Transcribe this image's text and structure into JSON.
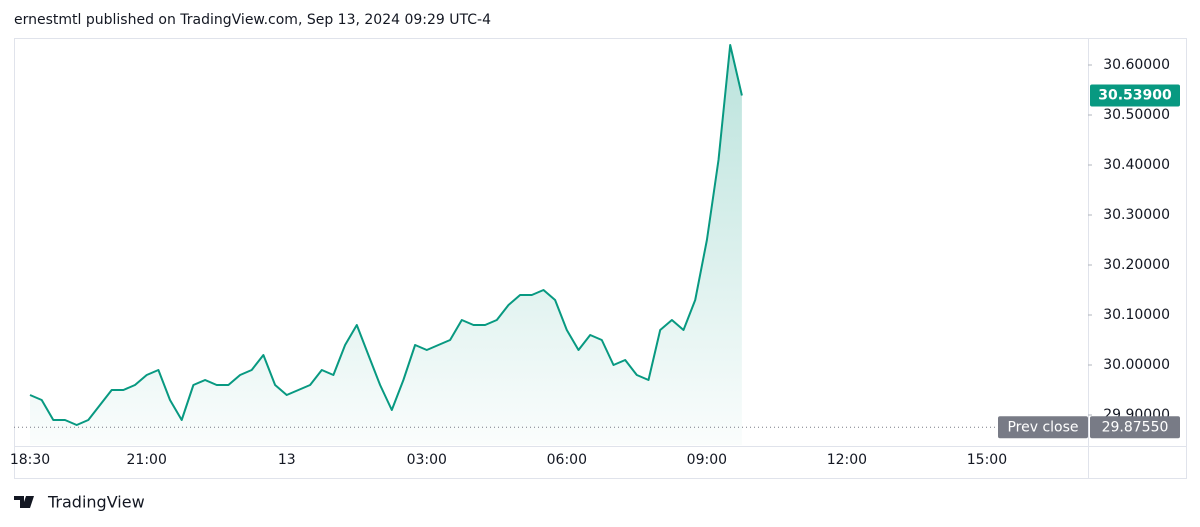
{
  "header": {
    "text": "ernestmtl published on TradingView.com, Sep 13, 2024 09:29 UTC-4"
  },
  "footer": {
    "brand": "TradingView"
  },
  "chart_data": {
    "type": "area",
    "color": "#089981",
    "categories": [
      "18:30",
      null,
      null,
      null,
      null,
      null,
      null,
      null,
      null,
      null,
      "21:00",
      null,
      null,
      null,
      null,
      null,
      null,
      null,
      null,
      null,
      null,
      null,
      "13",
      null,
      null,
      null,
      null,
      null,
      null,
      null,
      null,
      null,
      null,
      null,
      "03:00",
      null,
      null,
      null,
      null,
      null,
      null,
      null,
      null,
      null,
      null,
      null,
      "06:00",
      null,
      null,
      null,
      null,
      null,
      null,
      null,
      null,
      null,
      null,
      null,
      "09:00",
      null,
      null,
      null,
      null,
      null,
      null,
      null,
      null,
      null,
      null,
      null,
      "12:00",
      null,
      null,
      null,
      null,
      null,
      null,
      null,
      null,
      null,
      null,
      null,
      "15:00",
      null,
      null,
      null,
      null,
      null,
      null,
      null,
      null
    ],
    "values": [
      29.94,
      29.93,
      29.89,
      29.89,
      29.88,
      29.89,
      29.92,
      29.95,
      29.95,
      29.96,
      29.98,
      29.99,
      29.93,
      29.89,
      29.96,
      29.97,
      29.96,
      29.96,
      29.98,
      29.99,
      30.02,
      29.96,
      29.94,
      29.95,
      29.96,
      29.99,
      29.98,
      30.04,
      30.08,
      30.02,
      29.96,
      29.91,
      29.97,
      30.04,
      30.03,
      30.04,
      30.05,
      30.09,
      30.08,
      30.08,
      30.09,
      30.12,
      30.14,
      30.14,
      30.15,
      30.13,
      30.07,
      30.03,
      30.06,
      30.05,
      30.0,
      30.01,
      29.98,
      29.97,
      30.07,
      30.09,
      30.07,
      30.13,
      30.25,
      30.41,
      30.64,
      30.539,
      null,
      null,
      null,
      null,
      null,
      null,
      null,
      null,
      null,
      null,
      null,
      null,
      null,
      null,
      null,
      null,
      null,
      null,
      null,
      null,
      null,
      null,
      null,
      null,
      null,
      null,
      null,
      null,
      null
    ],
    "value_labels": [
      null,
      null,
      null,
      null,
      null,
      null,
      null,
      null,
      null,
      null,
      null,
      null,
      null,
      null,
      null,
      null,
      null,
      null,
      null,
      null,
      null,
      null,
      null,
      null,
      null,
      null,
      null,
      null,
      null,
      null,
      null,
      null,
      null,
      null,
      null,
      null,
      null,
      null,
      null,
      null,
      null,
      null,
      null,
      null,
      null,
      null,
      null,
      null,
      null,
      null,
      null,
      null,
      null,
      null,
      null,
      null,
      null,
      null,
      null,
      null,
      null,
      "30.53900",
      null,
      null,
      null,
      null,
      null,
      null,
      null,
      null,
      null,
      null,
      null,
      null,
      null,
      null,
      null,
      null,
      null,
      null,
      null,
      null,
      null,
      null,
      null,
      null,
      null,
      null,
      null,
      null,
      null
    ],
    "ylim": [
      29.84,
      30.65
    ],
    "yticks": [
      {
        "value": 29.9,
        "label": "29.90000"
      },
      {
        "value": 30.0,
        "label": "30.00000"
      },
      {
        "value": 30.1,
        "label": "30.10000"
      },
      {
        "value": 30.2,
        "label": "30.20000"
      },
      {
        "value": 30.3,
        "label": "30.30000"
      },
      {
        "value": 30.4,
        "label": "30.40000"
      },
      {
        "value": 30.5,
        "label": "30.50000"
      },
      {
        "value": 30.6,
        "label": "30.60000"
      }
    ],
    "prev_close": {
      "label": "Prev close",
      "value": 29.8755,
      "value_label": "29.87550"
    }
  }
}
